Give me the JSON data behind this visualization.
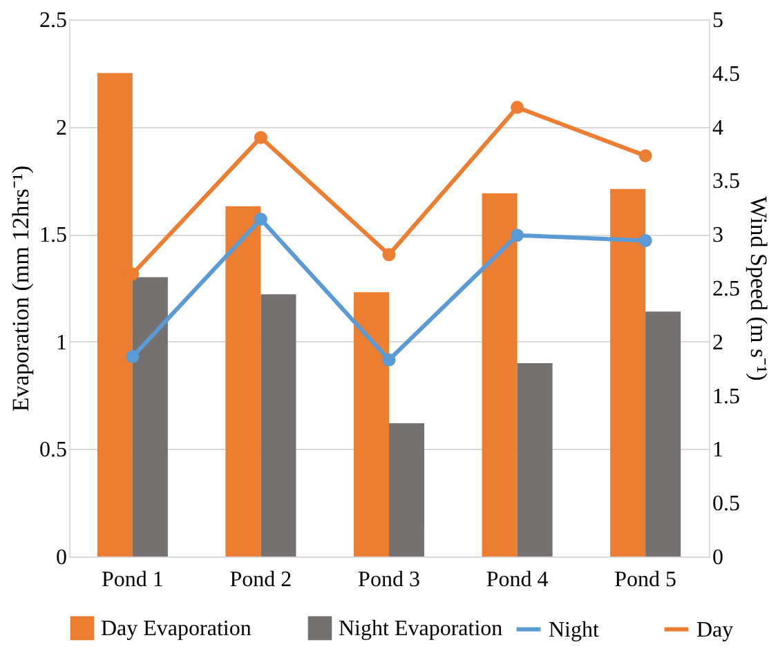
{
  "chart_data": {
    "type": "bar",
    "ylabel": "Evaporation (mm 12hrs⁻¹)",
    "y2label": "Wind Speed (m s⁻¹)",
    "categories": [
      "Pond 1",
      "Pond 2",
      "Pond 3",
      "Pond 4",
      "Pond 5"
    ],
    "series": [
      {
        "name": "Day Evaporation",
        "color": "#ed7d31",
        "values": [
          2.25,
          1.63,
          1.23,
          1.69,
          1.71
        ]
      },
      {
        "name": "Night Evaporation",
        "color": "#767171",
        "values": [
          1.3,
          1.22,
          0.62,
          0.9,
          1.14
        ]
      },
      {
        "name": "Night",
        "type": "line",
        "axis": "y2",
        "color": "#5b9bd5",
        "values": [
          1.86,
          3.14,
          1.83,
          2.99,
          2.94
        ]
      },
      {
        "name": "Day",
        "type": "line",
        "axis": "y2",
        "color": "#ed7d31",
        "values": [
          2.63,
          3.9,
          2.81,
          4.18,
          3.73
        ]
      }
    ],
    "ylim": [
      0,
      2.5
    ],
    "yticks": [
      0,
      0.5,
      1,
      1.5,
      2,
      2.5
    ],
    "y2lim": [
      0,
      5
    ],
    "y2ticks": [
      0,
      0.5,
      1,
      1.5,
      2,
      2.5,
      3,
      3.5,
      4,
      4.5,
      5
    ],
    "grid": "y",
    "legend": "bottom",
    "marker": "circle",
    "line_style": "solid"
  }
}
